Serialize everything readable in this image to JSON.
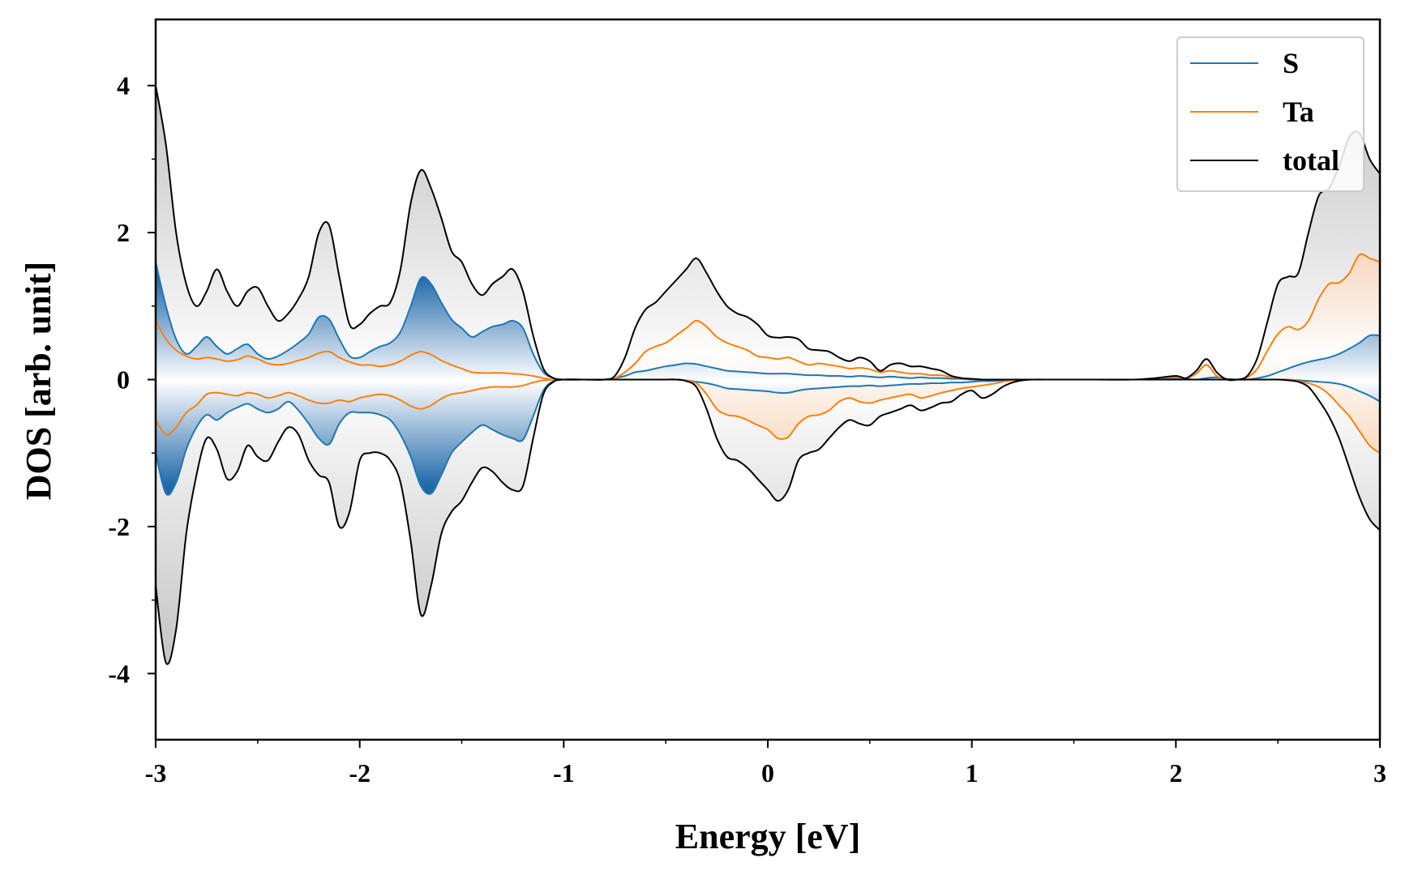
{
  "chart_data": {
    "type": "line",
    "title": "",
    "xlabel": "Energy [eV]",
    "ylabel": "DOS [arb. unit]",
    "xlim": [
      -3,
      3
    ],
    "ylim": [
      -4.9,
      4.9
    ],
    "xticks": [
      -3,
      -2,
      -1,
      0,
      1,
      2,
      3
    ],
    "xtick_labels": [
      "-3",
      "-2",
      "-1",
      "0",
      "1",
      "2",
      "3"
    ],
    "yticks": [
      -4,
      -2,
      0,
      2,
      4
    ],
    "ytick_labels": [
      "-4",
      "-2",
      "0",
      "2",
      "4"
    ],
    "legend_position": "top-right",
    "legend": [
      "S",
      "Ta",
      "total"
    ],
    "grid": false,
    "x": [
      -3.0,
      -2.95,
      -2.9,
      -2.85,
      -2.8,
      -2.75,
      -2.7,
      -2.65,
      -2.6,
      -2.55,
      -2.5,
      -2.45,
      -2.4,
      -2.35,
      -2.3,
      -2.25,
      -2.2,
      -2.15,
      -2.1,
      -2.05,
      -2.0,
      -1.95,
      -1.9,
      -1.85,
      -1.8,
      -1.75,
      -1.7,
      -1.65,
      -1.6,
      -1.55,
      -1.5,
      -1.45,
      -1.4,
      -1.35,
      -1.3,
      -1.25,
      -1.2,
      -1.15,
      -1.1,
      -1.05,
      -1.0,
      -0.9,
      -0.8,
      -0.75,
      -0.7,
      -0.65,
      -0.6,
      -0.55,
      -0.5,
      -0.45,
      -0.4,
      -0.35,
      -0.3,
      -0.25,
      -0.2,
      -0.15,
      -0.1,
      -0.05,
      0.0,
      0.05,
      0.1,
      0.15,
      0.2,
      0.25,
      0.3,
      0.35,
      0.4,
      0.45,
      0.5,
      0.55,
      0.6,
      0.65,
      0.7,
      0.75,
      0.8,
      0.85,
      0.9,
      0.95,
      1.0,
      1.05,
      1.1,
      1.15,
      1.2,
      1.25,
      1.3,
      1.4,
      1.6,
      1.8,
      1.9,
      2.0,
      2.05,
      2.1,
      2.15,
      2.2,
      2.25,
      2.3,
      2.35,
      2.4,
      2.45,
      2.5,
      2.55,
      2.6,
      2.65,
      2.7,
      2.75,
      2.8,
      2.85,
      2.9,
      2.95,
      3.0
    ],
    "series": [
      {
        "name": "S",
        "color": "#1f77b4",
        "up": [
          1.6,
          1.0,
          0.55,
          0.35,
          0.45,
          0.58,
          0.45,
          0.35,
          0.42,
          0.48,
          0.35,
          0.28,
          0.32,
          0.4,
          0.5,
          0.62,
          0.85,
          0.82,
          0.55,
          0.32,
          0.3,
          0.38,
          0.45,
          0.5,
          0.65,
          1.0,
          1.38,
          1.3,
          1.05,
          0.82,
          0.7,
          0.58,
          0.65,
          0.72,
          0.75,
          0.8,
          0.7,
          0.35,
          0.1,
          0.02,
          0.0,
          0.0,
          0.0,
          0.02,
          0.05,
          0.1,
          0.12,
          0.15,
          0.18,
          0.2,
          0.22,
          0.21,
          0.18,
          0.15,
          0.12,
          0.11,
          0.1,
          0.09,
          0.08,
          0.08,
          0.08,
          0.07,
          0.06,
          0.06,
          0.05,
          0.05,
          0.04,
          0.05,
          0.04,
          0.03,
          0.04,
          0.03,
          0.02,
          0.03,
          0.02,
          0.02,
          0.01,
          0.01,
          0.0,
          0.0,
          0.0,
          0.0,
          0.0,
          0.0,
          0.0,
          0.0,
          0.0,
          0.0,
          0.0,
          0.01,
          0.01,
          0.0,
          0.02,
          0.03,
          0.01,
          0.0,
          0.0,
          0.02,
          0.05,
          0.1,
          0.15,
          0.2,
          0.24,
          0.27,
          0.3,
          0.35,
          0.42,
          0.5,
          0.6,
          0.6
        ],
        "down": [
          -1.0,
          -1.55,
          -1.4,
          -0.95,
          -0.65,
          -0.48,
          -0.55,
          -0.45,
          -0.38,
          -0.33,
          -0.4,
          -0.45,
          -0.4,
          -0.3,
          -0.42,
          -0.6,
          -0.8,
          -0.88,
          -0.6,
          -0.45,
          -0.45,
          -0.45,
          -0.48,
          -0.55,
          -0.75,
          -1.05,
          -1.45,
          -1.55,
          -1.3,
          -1.0,
          -0.85,
          -0.72,
          -0.62,
          -0.68,
          -0.75,
          -0.8,
          -0.82,
          -0.5,
          -0.15,
          -0.02,
          0.0,
          0.0,
          0.0,
          0.0,
          0.0,
          0.0,
          0.0,
          0.0,
          0.0,
          0.0,
          -0.01,
          -0.03,
          -0.05,
          -0.08,
          -0.12,
          -0.13,
          -0.14,
          -0.15,
          -0.16,
          -0.18,
          -0.18,
          -0.15,
          -0.13,
          -0.12,
          -0.11,
          -0.1,
          -0.09,
          -0.09,
          -0.08,
          -0.09,
          -0.08,
          -0.07,
          -0.06,
          -0.06,
          -0.05,
          -0.05,
          -0.04,
          -0.04,
          -0.03,
          -0.02,
          -0.02,
          -0.01,
          0.0,
          0.0,
          0.0,
          0.0,
          0.0,
          0.0,
          0.0,
          0.0,
          0.0,
          0.0,
          0.0,
          0.0,
          0.0,
          0.0,
          0.0,
          0.0,
          0.0,
          0.0,
          0.0,
          -0.01,
          -0.02,
          -0.03,
          -0.04,
          -0.06,
          -0.1,
          -0.16,
          -0.22,
          -0.3
        ]
      },
      {
        "name": "Ta",
        "color": "#ff7f0e",
        "up": [
          0.8,
          0.55,
          0.4,
          0.32,
          0.28,
          0.3,
          0.28,
          0.25,
          0.27,
          0.32,
          0.28,
          0.22,
          0.2,
          0.22,
          0.26,
          0.3,
          0.36,
          0.38,
          0.3,
          0.24,
          0.2,
          0.2,
          0.18,
          0.2,
          0.25,
          0.33,
          0.38,
          0.34,
          0.26,
          0.2,
          0.15,
          0.1,
          0.09,
          0.09,
          0.09,
          0.08,
          0.07,
          0.05,
          0.02,
          0.0,
          0.0,
          0.0,
          0.0,
          0.02,
          0.1,
          0.22,
          0.38,
          0.45,
          0.5,
          0.6,
          0.7,
          0.8,
          0.72,
          0.58,
          0.5,
          0.45,
          0.4,
          0.32,
          0.3,
          0.28,
          0.3,
          0.25,
          0.2,
          0.22,
          0.2,
          0.18,
          0.15,
          0.16,
          0.14,
          0.1,
          0.12,
          0.1,
          0.08,
          0.08,
          0.06,
          0.06,
          0.03,
          0.02,
          0.01,
          0.0,
          0.0,
          0.0,
          0.0,
          0.0,
          0.0,
          0.0,
          0.0,
          0.0,
          0.02,
          0.03,
          0.02,
          0.08,
          0.2,
          0.05,
          0.0,
          0.0,
          0.03,
          0.15,
          0.4,
          0.62,
          0.72,
          0.68,
          0.8,
          1.1,
          1.3,
          1.32,
          1.45,
          1.7,
          1.65,
          1.6
        ],
        "down": [
          -0.55,
          -0.75,
          -0.65,
          -0.45,
          -0.35,
          -0.2,
          -0.18,
          -0.2,
          -0.22,
          -0.18,
          -0.2,
          -0.25,
          -0.22,
          -0.18,
          -0.22,
          -0.28,
          -0.32,
          -0.32,
          -0.28,
          -0.3,
          -0.25,
          -0.22,
          -0.2,
          -0.22,
          -0.28,
          -0.36,
          -0.4,
          -0.35,
          -0.26,
          -0.2,
          -0.18,
          -0.15,
          -0.12,
          -0.1,
          -0.1,
          -0.1,
          -0.08,
          -0.04,
          -0.01,
          0.0,
          0.0,
          0.0,
          0.0,
          0.0,
          0.0,
          0.0,
          0.0,
          0.0,
          0.0,
          0.0,
          -0.01,
          -0.05,
          -0.2,
          -0.4,
          -0.48,
          -0.5,
          -0.55,
          -0.62,
          -0.68,
          -0.8,
          -0.78,
          -0.6,
          -0.5,
          -0.48,
          -0.42,
          -0.3,
          -0.25,
          -0.3,
          -0.32,
          -0.28,
          -0.25,
          -0.22,
          -0.2,
          -0.25,
          -0.22,
          -0.18,
          -0.15,
          -0.12,
          -0.1,
          -0.08,
          -0.06,
          -0.03,
          -0.01,
          0.0,
          0.0,
          0.0,
          0.0,
          0.0,
          0.0,
          0.0,
          0.0,
          0.0,
          0.0,
          0.0,
          0.0,
          0.0,
          0.0,
          0.0,
          0.0,
          0.0,
          0.0,
          -0.02,
          -0.05,
          -0.1,
          -0.2,
          -0.35,
          -0.5,
          -0.7,
          -0.9,
          -1.0
        ]
      },
      {
        "name": "total",
        "color": "#000000",
        "up": [
          4.0,
          3.2,
          2.0,
          1.3,
          1.0,
          1.2,
          1.5,
          1.2,
          1.0,
          1.2,
          1.25,
          1.0,
          0.8,
          0.9,
          1.1,
          1.4,
          2.0,
          2.1,
          1.4,
          0.75,
          0.75,
          0.9,
          1.0,
          1.05,
          1.5,
          2.4,
          2.85,
          2.6,
          2.2,
          1.75,
          1.6,
          1.3,
          1.15,
          1.3,
          1.4,
          1.5,
          1.2,
          0.6,
          0.15,
          0.02,
          0.0,
          0.0,
          0.0,
          0.05,
          0.3,
          0.7,
          0.95,
          1.05,
          1.2,
          1.35,
          1.5,
          1.65,
          1.45,
          1.2,
          1.0,
          0.9,
          0.85,
          0.75,
          0.6,
          0.57,
          0.58,
          0.55,
          0.42,
          0.4,
          0.38,
          0.3,
          0.25,
          0.3,
          0.25,
          0.12,
          0.2,
          0.22,
          0.18,
          0.18,
          0.15,
          0.12,
          0.05,
          0.02,
          0.01,
          0.0,
          0.0,
          0.0,
          0.0,
          0.0,
          0.0,
          0.0,
          0.0,
          0.0,
          0.02,
          0.05,
          0.02,
          0.12,
          0.28,
          0.1,
          0.0,
          0.0,
          0.05,
          0.3,
          0.8,
          1.3,
          1.4,
          1.45,
          2.0,
          2.5,
          2.6,
          2.9,
          3.3,
          3.35,
          3.0,
          2.8
        ],
        "down": [
          -2.8,
          -3.85,
          -3.4,
          -2.1,
          -1.3,
          -0.8,
          -0.95,
          -1.35,
          -1.25,
          -0.9,
          -1.05,
          -1.1,
          -0.85,
          -0.65,
          -0.75,
          -1.1,
          -1.3,
          -1.4,
          -2.0,
          -1.8,
          -1.1,
          -1.0,
          -1.0,
          -1.1,
          -1.4,
          -2.2,
          -3.2,
          -2.8,
          -2.1,
          -1.8,
          -1.65,
          -1.4,
          -1.2,
          -1.25,
          -1.4,
          -1.5,
          -1.45,
          -0.8,
          -0.2,
          -0.03,
          0.0,
          0.0,
          0.0,
          0.0,
          0.0,
          0.0,
          0.0,
          0.0,
          0.0,
          0.0,
          -0.02,
          -0.1,
          -0.4,
          -0.8,
          -1.05,
          -1.1,
          -1.2,
          -1.35,
          -1.5,
          -1.65,
          -1.5,
          -1.1,
          -1.0,
          -0.95,
          -0.8,
          -0.65,
          -0.55,
          -0.6,
          -0.62,
          -0.5,
          -0.45,
          -0.4,
          -0.35,
          -0.42,
          -0.38,
          -0.32,
          -0.3,
          -0.2,
          -0.15,
          -0.25,
          -0.2,
          -0.1,
          -0.04,
          -0.01,
          0.0,
          0.0,
          0.0,
          0.0,
          0.0,
          0.0,
          0.0,
          0.0,
          0.0,
          0.0,
          0.0,
          0.0,
          0.0,
          0.0,
          0.0,
          0.0,
          -0.01,
          -0.03,
          -0.1,
          -0.28,
          -0.5,
          -0.8,
          -1.2,
          -1.6,
          -1.9,
          -2.05
        ]
      }
    ]
  }
}
